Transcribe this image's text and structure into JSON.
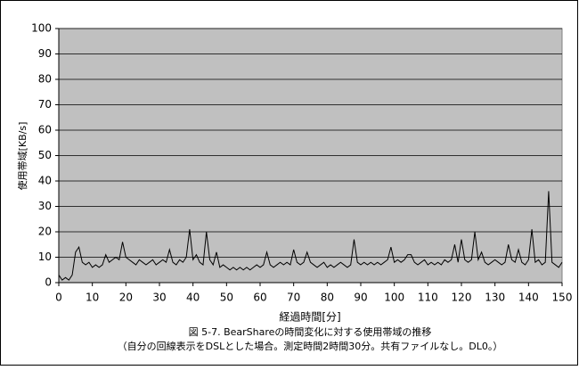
{
  "chart_data": {
    "type": "line",
    "title": "図 5-7. BearShareの時間変化に対する使用帯域の推移",
    "subtitle": "（自分の回線表示をDSLとした場合。測定時間2時間30分。共有ファイルなし。DL0。）",
    "xlabel": "経過時間[分]",
    "ylabel": "使用帯域[KB/s]",
    "x": [
      0,
      1,
      2,
      3,
      4,
      5,
      6,
      7,
      8,
      9,
      10,
      11,
      12,
      13,
      14,
      15,
      16,
      17,
      18,
      19,
      20,
      21,
      22,
      23,
      24,
      25,
      26,
      27,
      28,
      29,
      30,
      31,
      32,
      33,
      34,
      35,
      36,
      37,
      38,
      39,
      40,
      41,
      42,
      43,
      44,
      45,
      46,
      47,
      48,
      49,
      50,
      51,
      52,
      53,
      54,
      55,
      56,
      57,
      58,
      59,
      60,
      61,
      62,
      63,
      64,
      65,
      66,
      67,
      68,
      69,
      70,
      71,
      72,
      73,
      74,
      75,
      76,
      77,
      78,
      79,
      80,
      81,
      82,
      83,
      84,
      85,
      86,
      87,
      88,
      89,
      90,
      91,
      92,
      93,
      94,
      95,
      96,
      97,
      98,
      99,
      100,
      101,
      102,
      103,
      104,
      105,
      106,
      107,
      108,
      109,
      110,
      111,
      112,
      113,
      114,
      115,
      116,
      117,
      118,
      119,
      120,
      121,
      122,
      123,
      124,
      125,
      126,
      127,
      128,
      129,
      130,
      131,
      132,
      133,
      134,
      135,
      136,
      137,
      138,
      139,
      140,
      141,
      142,
      143,
      144,
      145,
      146,
      147,
      148,
      149,
      150
    ],
    "values": [
      3,
      1,
      2,
      1,
      3,
      12,
      14,
      8,
      7,
      8,
      6,
      7,
      6,
      7,
      11,
      8,
      9,
      10,
      9,
      16,
      10,
      9,
      8,
      7,
      9,
      8,
      7,
      8,
      9,
      7,
      8,
      9,
      8,
      13,
      8,
      7,
      9,
      8,
      10,
      21,
      9,
      11,
      8,
      7,
      20,
      9,
      7,
      12,
      6,
      7,
      6,
      5,
      6,
      5,
      6,
      5,
      6,
      5,
      6,
      7,
      6,
      7,
      12,
      7,
      6,
      7,
      8,
      7,
      8,
      7,
      13,
      8,
      7,
      8,
      12,
      8,
      7,
      6,
      7,
      8,
      6,
      7,
      6,
      7,
      8,
      7,
      6,
      7,
      17,
      8,
      7,
      8,
      7,
      8,
      7,
      8,
      7,
      8,
      9,
      14,
      8,
      9,
      8,
      9,
      11,
      11,
      8,
      7,
      8,
      9,
      7,
      8,
      7,
      8,
      7,
      9,
      8,
      9,
      15,
      8,
      17,
      9,
      8,
      9,
      20,
      9,
      12,
      8,
      7,
      8,
      9,
      8,
      7,
      8,
      15,
      9,
      8,
      13,
      8,
      7,
      9,
      21,
      8,
      9,
      7,
      8,
      36,
      8,
      7,
      6,
      8
    ],
    "color": "#000000",
    "xlim": [
      0,
      150
    ],
    "xticks": [
      0,
      10,
      20,
      30,
      40,
      50,
      60,
      70,
      80,
      90,
      100,
      110,
      120,
      130,
      140,
      150
    ],
    "ylim": [
      0,
      100
    ],
    "yticks": [
      0,
      10,
      20,
      30,
      40,
      50,
      60,
      70,
      80,
      90,
      100
    ],
    "grid": true
  }
}
